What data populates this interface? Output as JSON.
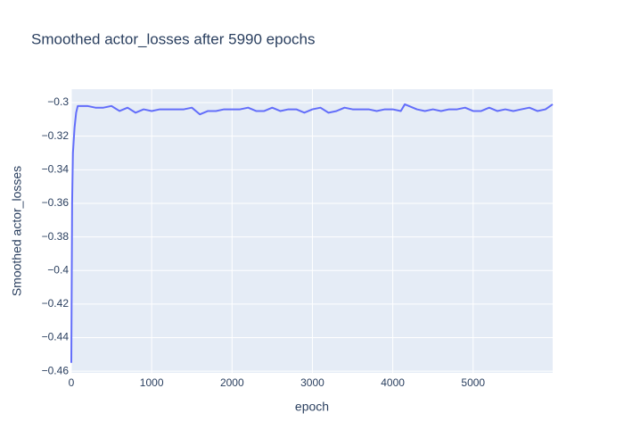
{
  "chart_data": {
    "type": "line",
    "title": "Smoothed actor_losses after 5990 epochs",
    "x_label": "epoch",
    "y_label": "Smoothed actor_losses",
    "x": [
      0,
      10,
      20,
      40,
      60,
      80,
      100,
      200,
      300,
      400,
      500,
      600,
      700,
      800,
      900,
      1000,
      1100,
      1200,
      1300,
      1400,
      1500,
      1600,
      1700,
      1800,
      1900,
      2000,
      2100,
      2200,
      2300,
      2400,
      2500,
      2600,
      2700,
      2800,
      2900,
      3000,
      3100,
      3200,
      3300,
      3400,
      3500,
      3600,
      3700,
      3800,
      3900,
      4000,
      4100,
      4150,
      4200,
      4300,
      4400,
      4500,
      4600,
      4700,
      4800,
      4900,
      5000,
      5100,
      5200,
      5300,
      5400,
      5500,
      5600,
      5700,
      5800,
      5900,
      5990
    ],
    "series": [
      {
        "name": "Smoothed actor_losses",
        "color": "#636efa",
        "values": [
          -0.455,
          -0.36,
          -0.33,
          -0.315,
          -0.306,
          -0.302,
          -0.302,
          -0.302,
          -0.303,
          -0.303,
          -0.302,
          -0.305,
          -0.303,
          -0.306,
          -0.304,
          -0.305,
          -0.304,
          -0.304,
          -0.304,
          -0.304,
          -0.303,
          -0.307,
          -0.305,
          -0.305,
          -0.304,
          -0.304,
          -0.304,
          -0.303,
          -0.305,
          -0.305,
          -0.303,
          -0.305,
          -0.304,
          -0.304,
          -0.306,
          -0.304,
          -0.303,
          -0.306,
          -0.305,
          -0.303,
          -0.304,
          -0.304,
          -0.304,
          -0.305,
          -0.304,
          -0.304,
          -0.305,
          -0.301,
          -0.302,
          -0.304,
          -0.305,
          -0.304,
          -0.305,
          -0.304,
          -0.304,
          -0.303,
          -0.305,
          -0.305,
          -0.303,
          -0.305,
          -0.304,
          -0.305,
          -0.304,
          -0.303,
          -0.305,
          -0.304,
          -0.301
        ]
      }
    ],
    "xlim": [
      0,
      5990
    ],
    "xticks": [
      0,
      1000,
      2000,
      3000,
      4000,
      5000
    ],
    "ylim": [
      -0.461,
      -0.292
    ],
    "yticks": [
      {
        "value": -0.3,
        "label": "−0.3"
      },
      {
        "value": -0.32,
        "label": "−0.32"
      },
      {
        "value": -0.34,
        "label": "−0.34"
      },
      {
        "value": -0.36,
        "label": "−0.36"
      },
      {
        "value": -0.38,
        "label": "−0.38"
      },
      {
        "value": -0.4,
        "label": "−0.4"
      },
      {
        "value": -0.42,
        "label": "−0.42"
      },
      {
        "value": -0.44,
        "label": "−0.44"
      },
      {
        "value": -0.46,
        "label": "−0.46"
      }
    ],
    "grid": true
  }
}
